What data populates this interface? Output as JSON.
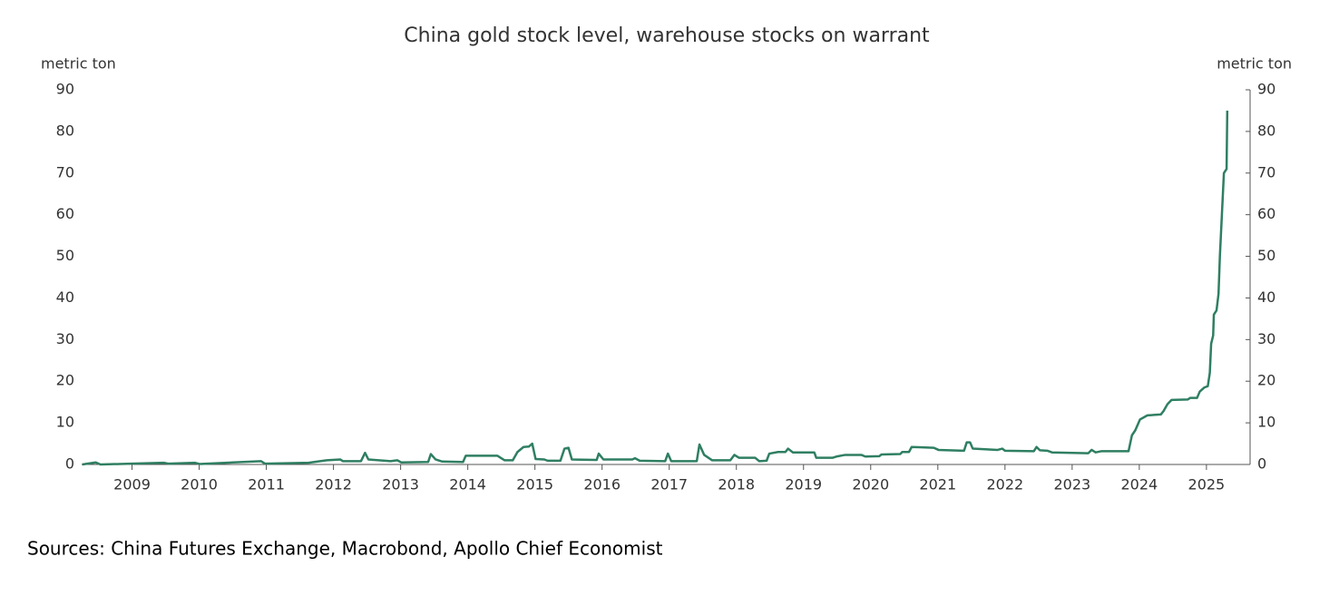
{
  "chart_data": {
    "type": "line",
    "title": "China gold stock level, warehouse stocks on warrant",
    "ylabel": "metric ton",
    "y2label": "metric ton",
    "note": "Sources: China Futures Exchange, Macrobond, Apollo Chief Economist",
    "color": "#2f7f62",
    "x": [
      2008.76,
      2008.96,
      2009.03,
      2009.97,
      2010.04,
      2010.44,
      2010.51,
      2011.42,
      2011.48,
      2012.13,
      2012.4,
      2012.6,
      2012.64,
      2012.91,
      2012.97,
      2013.02,
      2013.35,
      2013.45,
      2013.51,
      2013.91,
      2013.95,
      2014.02,
      2014.12,
      2014.43,
      2014.47,
      2014.94,
      2014.99,
      2015.05,
      2015.17,
      2015.24,
      2015.33,
      2015.41,
      2015.46,
      2015.51,
      2015.64,
      2015.69,
      2015.88,
      2015.94,
      2016.0,
      2016.05,
      2016.42,
      2016.45,
      2016.52,
      2016.95,
      2016.99,
      2017.06,
      2017.44,
      2017.48,
      2017.53,
      2017.91,
      2017.95,
      2018.02,
      2018.14,
      2018.41,
      2018.47,
      2018.54,
      2018.78,
      2018.84,
      2018.95,
      2018.99,
      2019.12,
      2019.23,
      2019.27,
      2019.34,
      2019.66,
      2019.69,
      2019.93,
      2019.99,
      2020.12,
      2020.36,
      2020.42,
      2020.63,
      2020.66,
      2020.94,
      2020.97,
      2021.07,
      2021.11,
      2021.44,
      2021.51,
      2021.89,
      2021.93,
      2021.98,
      2022.02,
      2022.39,
      2022.46,
      2022.5,
      2022.93,
      2022.97,
      2023.02,
      2023.13,
      2023.2,
      2023.74,
      2023.79,
      2023.85,
      2023.94,
      2024.34,
      2024.39,
      2024.44,
      2024.51,
      2024.62,
      2024.82,
      2024.86,
      2024.92,
      2024.98,
      2025.22,
      2025.26,
      2025.36,
      2025.4,
      2025.47,
      2025.52,
      2025.55,
      2025.57,
      2025.6,
      2025.61,
      2025.65,
      2025.68,
      2025.7,
      2025.73,
      2025.76,
      2025.8,
      2025.81
    ],
    "values": [
      0,
      0.5,
      0,
      0.4,
      0.2,
      0.4,
      0.1,
      0.8,
      0.2,
      0.4,
      1.0,
      1.2,
      0.8,
      0.8,
      2.8,
      1.2,
      0.8,
      1.0,
      0.5,
      0.6,
      2.5,
      1.2,
      0.7,
      0.6,
      2.1,
      2.1,
      1.6,
      1.0,
      1.0,
      3.0,
      4.2,
      4.3,
      5.0,
      1.3,
      1.2,
      0.9,
      0.9,
      3.8,
      4.0,
      1.2,
      1.1,
      2.6,
      1.2,
      1.2,
      1.5,
      0.9,
      0.8,
      2.6,
      0.8,
      0.8,
      4.8,
      2.3,
      1.0,
      1.0,
      2.3,
      1.6,
      1.6,
      0.8,
      0.9,
      2.6,
      3.0,
      3.0,
      3.8,
      2.9,
      2.9,
      1.6,
      1.6,
      1.9,
      2.3,
      2.3,
      1.9,
      2.0,
      2.4,
      2.5,
      3.0,
      3.0,
      4.2,
      4.0,
      3.5,
      3.3,
      5.3,
      5.3,
      3.8,
      3.5,
      3.8,
      3.3,
      3.2,
      4.2,
      3.4,
      3.3,
      2.9,
      2.7,
      3.5,
      2.9,
      3.2,
      3.2,
      7.0,
      8.2,
      10.8,
      11.8,
      12.0,
      12.8,
      14.5,
      15.5,
      15.6,
      16.0,
      16.0,
      17.5,
      18.5,
      18.8,
      22,
      29,
      31,
      36,
      37,
      41,
      50,
      60,
      70,
      71,
      85
    ],
    "xlim": [
      2008.75,
      2026.15
    ],
    "xticks": [
      {
        "value": 2009.5,
        "label": "2009"
      },
      {
        "value": 2010.5,
        "label": "2010"
      },
      {
        "value": 2011.5,
        "label": "2011"
      },
      {
        "value": 2012.5,
        "label": "2012"
      },
      {
        "value": 2013.5,
        "label": "2013"
      },
      {
        "value": 2014.5,
        "label": "2014"
      },
      {
        "value": 2015.5,
        "label": "2015"
      },
      {
        "value": 2016.5,
        "label": "2016"
      },
      {
        "value": 2017.5,
        "label": "2017"
      },
      {
        "value": 2018.5,
        "label": "2018"
      },
      {
        "value": 2019.5,
        "label": "2019"
      },
      {
        "value": 2020.5,
        "label": "2020"
      },
      {
        "value": 2021.5,
        "label": "2021"
      },
      {
        "value": 2022.5,
        "label": "2022"
      },
      {
        "value": 2023.5,
        "label": "2023"
      },
      {
        "value": 2024.5,
        "label": "2024"
      },
      {
        "value": 2025.5,
        "label": "2025"
      }
    ],
    "ylim": [
      0,
      90
    ],
    "yticks": [
      0,
      10,
      20,
      30,
      40,
      50,
      60,
      70,
      80,
      90
    ],
    "y2lim": [
      0,
      90
    ],
    "y2ticks": [
      0,
      10,
      20,
      30,
      40,
      50,
      60,
      70,
      80,
      90
    ]
  }
}
